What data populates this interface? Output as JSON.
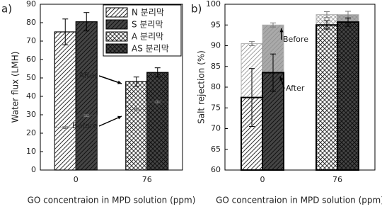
{
  "chart_data": [
    {
      "type": "bar",
      "panel_label": "a)",
      "xlabel": "GO concentraion in MPD solution (ppm)",
      "ylabel": "Water flux (LMH)",
      "categories": [
        "0",
        "76"
      ],
      "ylim": [
        0,
        90
      ],
      "yticks": [
        0,
        10,
        20,
        30,
        40,
        50,
        60,
        70,
        80,
        90
      ],
      "legend": "upper right",
      "annotations": [
        "After",
        "Before"
      ],
      "series": [
        {
          "name": "N 분리막",
          "color": "#ffffff",
          "pattern": "diagonal",
          "values": [
            75,
            null
          ],
          "errors": [
            7,
            null
          ],
          "before": [
            23,
            null
          ],
          "before_errors": [
            0.5,
            null
          ]
        },
        {
          "name": "S 분리막",
          "color": "#454545",
          "pattern": "diagonal",
          "values": [
            80.5,
            null
          ],
          "errors": [
            5,
            null
          ],
          "before": [
            29.5,
            null
          ],
          "before_errors": [
            0.5,
            null
          ]
        },
        {
          "name": "A 분리막",
          "color": "#ffffff",
          "pattern": "cross",
          "values": [
            null,
            48
          ],
          "errors": [
            null,
            2.5
          ],
          "before": [
            null,
            33
          ],
          "before_errors": [
            null,
            0.5
          ]
        },
        {
          "name": "AS 분리막",
          "color": "#454545",
          "pattern": "cross",
          "values": [
            null,
            53
          ],
          "errors": [
            null,
            2.5
          ],
          "before": [
            null,
            37
          ],
          "before_errors": [
            null,
            0.5
          ]
        }
      ]
    },
    {
      "type": "bar",
      "panel_label": "b)",
      "xlabel": "GO concentraion in MPD solution (ppm)",
      "ylabel": "Salt rejection (%)",
      "categories": [
        "0",
        "76"
      ],
      "ylim": [
        60,
        100
      ],
      "yticks": [
        60,
        65,
        70,
        75,
        80,
        85,
        90,
        95,
        100
      ],
      "annotations": [
        "Before",
        "After"
      ],
      "series": [
        {
          "color": "#ffffff",
          "pattern": "diagonal",
          "values": [
            77.5,
            null
          ],
          "errors": [
            7,
            null
          ],
          "before": [
            90.5,
            null
          ],
          "before_errors": [
            0.5,
            null
          ]
        },
        {
          "color": "#454545",
          "pattern": "diagonal",
          "values": [
            83.5,
            null
          ],
          "errors": [
            4.5,
            null
          ],
          "before": [
            95,
            null
          ],
          "before_errors": [
            0.5,
            null
          ]
        },
        {
          "color": "#ffffff",
          "pattern": "cross",
          "values": [
            null,
            95
          ],
          "errors": [
            null,
            1
          ],
          "before": [
            null,
            97.5
          ],
          "before_errors": [
            null,
            0.7
          ]
        },
        {
          "color": "#454545",
          "pattern": "cross",
          "values": [
            null,
            95.7
          ],
          "errors": [
            null,
            1
          ],
          "before": [
            null,
            97.5
          ],
          "before_errors": [
            null,
            0.8
          ]
        }
      ]
    }
  ]
}
